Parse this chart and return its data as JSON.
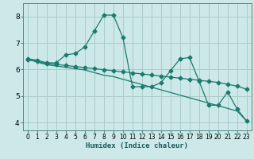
{
  "xlabel": "Humidex (Indice chaleur)",
  "background_color": "#cce8e8",
  "grid_color": "#aacccc",
  "line_color": "#1a7a6e",
  "xlim": [
    -0.5,
    23.5
  ],
  "ylim": [
    3.7,
    8.5
  ],
  "xticks": [
    0,
    1,
    2,
    3,
    4,
    5,
    6,
    7,
    8,
    9,
    10,
    11,
    12,
    13,
    14,
    15,
    16,
    17,
    18,
    19,
    20,
    21,
    22,
    23
  ],
  "yticks": [
    4,
    5,
    6,
    7,
    8
  ],
  "series1_x": [
    0,
    1,
    2,
    3,
    4,
    5,
    6,
    7,
    8,
    9,
    10,
    11,
    12,
    13,
    14,
    15,
    16,
    17,
    18,
    19,
    20,
    21,
    22,
    23
  ],
  "series1_y": [
    6.4,
    6.35,
    6.25,
    6.25,
    6.55,
    6.6,
    6.85,
    7.45,
    8.05,
    8.05,
    7.2,
    5.35,
    5.35,
    5.35,
    5.5,
    5.95,
    6.4,
    6.45,
    5.55,
    4.65,
    4.65,
    5.15,
    4.5,
    4.05
  ],
  "series2_x": [
    0,
    1,
    2,
    3,
    4,
    5,
    6,
    7,
    8,
    9,
    10,
    11,
    12,
    13,
    14,
    15,
    16,
    17,
    18,
    19,
    20,
    21,
    22,
    23
  ],
  "series2_y": [
    6.38,
    6.3,
    6.22,
    6.19,
    6.15,
    6.11,
    6.07,
    6.03,
    5.99,
    5.95,
    5.91,
    5.87,
    5.83,
    5.79,
    5.75,
    5.71,
    5.67,
    5.63,
    5.59,
    5.55,
    5.51,
    5.44,
    5.37,
    5.25
  ],
  "series3_x": [
    0,
    1,
    2,
    3,
    4,
    5,
    6,
    7,
    8,
    9,
    10,
    11,
    12,
    13,
    14,
    15,
    16,
    17,
    18,
    19,
    20,
    21,
    22,
    23
  ],
  "series3_y": [
    6.38,
    6.28,
    6.18,
    6.13,
    6.08,
    6.03,
    5.98,
    5.88,
    5.78,
    5.73,
    5.63,
    5.53,
    5.43,
    5.33,
    5.23,
    5.13,
    5.03,
    4.93,
    4.83,
    4.73,
    4.63,
    4.53,
    4.43,
    4.05
  ]
}
